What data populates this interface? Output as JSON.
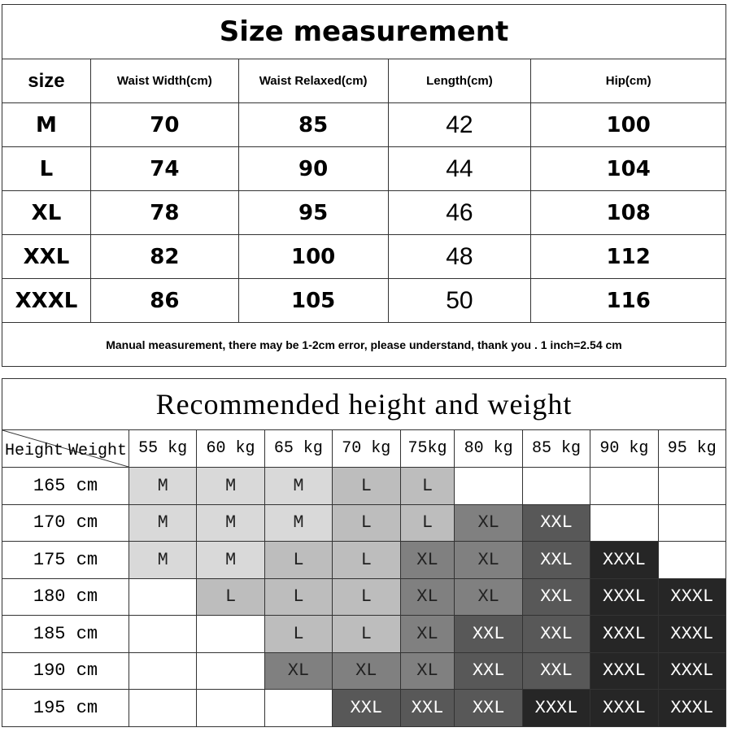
{
  "size_table": {
    "title": "Size measurement",
    "headers": [
      "size",
      "Waist Width(cm)",
      "Waist Relaxed(cm)",
      "Length(cm)",
      "Hip(cm)"
    ],
    "rows": [
      [
        "M",
        "70",
        "85",
        "42",
        "100"
      ],
      [
        "L",
        "74",
        "90",
        "44",
        "104"
      ],
      [
        "XL",
        "78",
        "95",
        "46",
        "108"
      ],
      [
        "XXL",
        "82",
        "100",
        "48",
        "112"
      ],
      [
        "XXXL",
        "86",
        "105",
        "50",
        "116"
      ]
    ],
    "note": "Manual measurement, there may be 1-2cm error, please understand, thank you .   1 inch=2.54 cm"
  },
  "recommend_table": {
    "title": "Recommended height and weight",
    "corner_height": "Height",
    "corner_weight": "Weight",
    "weights": [
      "55 kg",
      "60 kg",
      "65 kg",
      "70 kg",
      "75kg",
      "80 kg",
      "85 kg",
      "90 kg",
      "95 kg"
    ],
    "rows": [
      {
        "height": "165 cm",
        "sizes": [
          "M",
          "M",
          "M",
          "L",
          "L",
          "",
          "",
          "",
          ""
        ]
      },
      {
        "height": "170 cm",
        "sizes": [
          "M",
          "M",
          "M",
          "L",
          "L",
          "XL",
          "XXL",
          "",
          ""
        ]
      },
      {
        "height": "175 cm",
        "sizes": [
          "M",
          "M",
          "L",
          "L",
          "XL",
          "XL",
          "XXL",
          "XXXL",
          ""
        ]
      },
      {
        "height": "180 cm",
        "sizes": [
          "",
          "L",
          "L",
          "L",
          "XL",
          "XL",
          "XXL",
          "XXXL",
          "XXXL"
        ]
      },
      {
        "height": "185 cm",
        "sizes": [
          "",
          "",
          "L",
          "L",
          "XL",
          "XXL",
          "XXL",
          "XXXL",
          "XXXL"
        ]
      },
      {
        "height": "190 cm",
        "sizes": [
          "",
          "",
          "XL",
          "XL",
          "XL",
          "XXL",
          "XXL",
          "XXXL",
          "XXXL"
        ]
      },
      {
        "height": "195 cm",
        "sizes": [
          "",
          "",
          "",
          "XXL",
          "XXL",
          "XXL",
          "XXXL",
          "XXXL",
          "XXXL"
        ]
      }
    ],
    "size_colors": {
      "M": "#d9d9d9",
      "L": "#bdbdbd",
      "XL": "#808080",
      "XXL": "#585858",
      "XXXL": "#262626"
    }
  }
}
